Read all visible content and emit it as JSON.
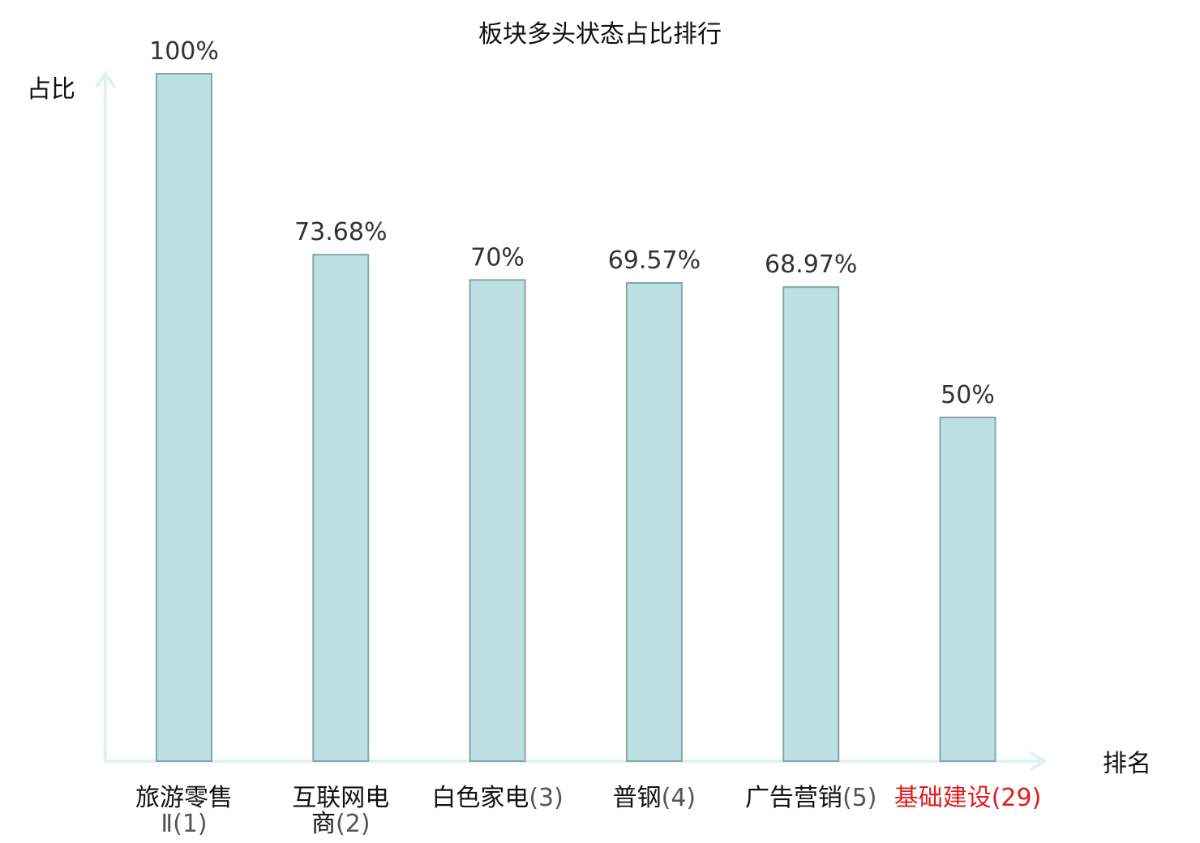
{
  "chart_data": {
    "type": "bar",
    "title": "板块多头状态占比排行",
    "ylabel": "占比",
    "xlabel": "排名",
    "ylim": [
      0,
      100
    ],
    "grid": false,
    "categories": [
      {
        "lines": [
          {
            "name": "旅游零售",
            "rank": ""
          },
          {
            "name": "",
            "rank": "Ⅱ(1)"
          }
        ],
        "highlight": false
      },
      {
        "lines": [
          {
            "name": "互联网电",
            "rank": ""
          },
          {
            "name": "商",
            "rank": "(2)"
          }
        ],
        "highlight": false
      },
      {
        "lines": [
          {
            "name": "白色家电",
            "rank": "(3)"
          }
        ],
        "highlight": false
      },
      {
        "lines": [
          {
            "name": "普钢",
            "rank": "(4)"
          }
        ],
        "highlight": false
      },
      {
        "lines": [
          {
            "name": "广告营销",
            "rank": "(5)"
          }
        ],
        "highlight": false
      },
      {
        "lines": [
          {
            "name": "基础建设",
            "rank": "(29)"
          }
        ],
        "highlight": true
      }
    ],
    "values": [
      100,
      73.68,
      70,
      69.57,
      68.97,
      50
    ],
    "value_labels": [
      "100%",
      "73.68%",
      "70%",
      "69.57%",
      "68.97%",
      "50%"
    ],
    "colors": {
      "bar_fill": "#bde0e3",
      "bar_stroke": "#86a6a9",
      "axis": "#dff2ef",
      "highlight": "#e11d1d"
    }
  }
}
